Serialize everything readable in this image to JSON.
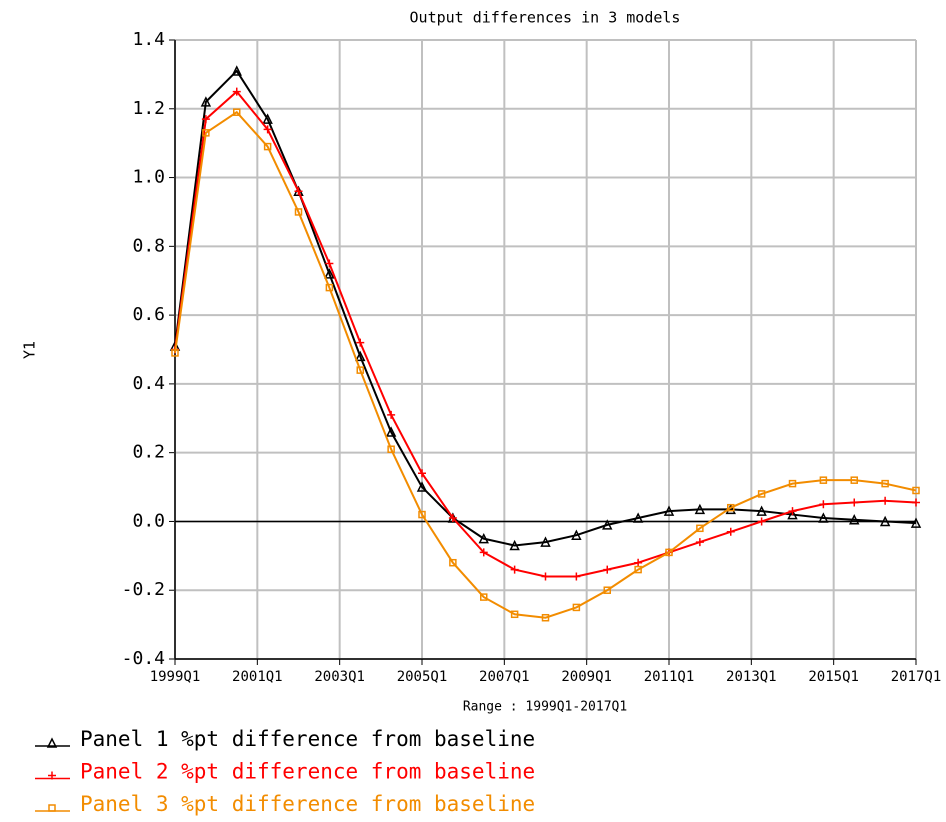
{
  "chart_data": {
    "type": "line",
    "title": "Output differences in 3 models",
    "ylabel": "Y1",
    "xlabel": "Range : 1999Q1-2017Q1",
    "x": [
      "1999Q1",
      "1999Q4",
      "2000Q3",
      "2001Q2",
      "2002Q1",
      "2002Q4",
      "2003Q3",
      "2004Q2",
      "2005Q1",
      "2005Q4",
      "2006Q3",
      "2007Q2",
      "2008Q1",
      "2008Q4",
      "2009Q3",
      "2010Q2",
      "2011Q1",
      "2011Q4",
      "2012Q3",
      "2013Q2",
      "2014Q1",
      "2014Q4",
      "2015Q3",
      "2016Q2",
      "2017Q1"
    ],
    "series": [
      {
        "name": "Panel 1 %pt difference from baseline",
        "color": "#000000",
        "marker": "triangle",
        "values": [
          0.51,
          1.22,
          1.31,
          1.17,
          0.96,
          0.72,
          0.48,
          0.26,
          0.1,
          0.01,
          -0.05,
          -0.07,
          -0.06,
          -0.04,
          -0.01,
          0.01,
          0.03,
          0.035,
          0.035,
          0.03,
          0.02,
          0.01,
          0.005,
          0.0,
          -0.005
        ]
      },
      {
        "name": "Panel 2 %pt difference from baseline",
        "color": "#ff0000",
        "marker": "plus",
        "values": [
          0.5,
          1.17,
          1.25,
          1.14,
          0.96,
          0.75,
          0.52,
          0.31,
          0.14,
          0.01,
          -0.09,
          -0.14,
          -0.16,
          -0.16,
          -0.14,
          -0.12,
          -0.09,
          -0.06,
          -0.03,
          0.0,
          0.03,
          0.05,
          0.055,
          0.06,
          0.055
        ]
      },
      {
        "name": "Panel 3 %pt difference from baseline",
        "color": "#f28c00",
        "marker": "square",
        "values": [
          0.49,
          1.13,
          1.19,
          1.09,
          0.9,
          0.68,
          0.44,
          0.21,
          0.02,
          -0.12,
          -0.22,
          -0.27,
          -0.28,
          -0.25,
          -0.2,
          -0.14,
          -0.09,
          -0.02,
          0.04,
          0.08,
          0.11,
          0.12,
          0.12,
          0.11,
          0.09
        ]
      }
    ],
    "xticks": [
      "1999Q1",
      "2001Q1",
      "2003Q1",
      "2005Q1",
      "2007Q1",
      "2009Q1",
      "2011Q1",
      "2013Q1",
      "2015Q1",
      "2017Q1"
    ],
    "ylim": [
      -0.4,
      1.4
    ],
    "yticks": [
      {
        "value": -0.4,
        "label": "-0.4"
      },
      {
        "value": -0.2,
        "label": "-0.2"
      },
      {
        "value": 0,
        "label": "0.0"
      },
      {
        "value": 0.2,
        "label": "0.2"
      },
      {
        "value": 0.4,
        "label": "0.4"
      },
      {
        "value": 0.6,
        "label": "0.6"
      },
      {
        "value": 0.8,
        "label": "0.8"
      },
      {
        "value": 1,
        "label": "1.0"
      },
      {
        "value": 1.2,
        "label": "1.2"
      },
      {
        "value": 1.4,
        "label": "1.4"
      }
    ],
    "grid": true,
    "legend": "bottom"
  }
}
